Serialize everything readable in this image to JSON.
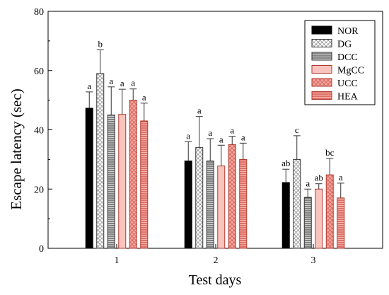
{
  "chart_data": {
    "type": "bar",
    "xlabel": "Test days",
    "ylabel": "Escape latency (sec)",
    "ylim": [
      0,
      80
    ],
    "yticks": [
      0,
      20,
      40,
      60,
      80
    ],
    "categories": [
      "1",
      "2",
      "3"
    ],
    "legend_position": "top-right",
    "series": [
      {
        "name": "NOR",
        "values": [
          47.3,
          29.5,
          22.2
        ],
        "errors": [
          5.5,
          6.5,
          4.5
        ],
        "labels": [
          "a",
          "a",
          "ab"
        ],
        "color": "#000000",
        "pattern": "solid"
      },
      {
        "name": "DG",
        "values": [
          59.0,
          34.0,
          30.0
        ],
        "errors": [
          8.0,
          10.5,
          8.0
        ],
        "labels": [
          "b",
          "a",
          "c"
        ],
        "color": "#c8c8c8",
        "pattern": "crosshatch"
      },
      {
        "name": "DCC",
        "values": [
          45.0,
          29.5,
          17.2
        ],
        "errors": [
          9.5,
          7.5,
          2.8
        ],
        "labels": [
          "a",
          "a",
          "a"
        ],
        "color": "#909090",
        "pattern": "horizontal-lines"
      },
      {
        "name": "MgCC",
        "values": [
          45.2,
          27.8,
          20.0
        ],
        "errors": [
          8.5,
          7.0,
          1.8
        ],
        "labels": [
          "a",
          "a",
          "ab"
        ],
        "color": "#f8c4bd",
        "pattern": "solid"
      },
      {
        "name": "UCC",
        "values": [
          50.0,
          35.0,
          24.8
        ],
        "errors": [
          3.8,
          2.8,
          5.5
        ],
        "labels": [
          "a",
          "a",
          "bc"
        ],
        "color": "#e57a72",
        "pattern": "crosshatch"
      },
      {
        "name": "HEA",
        "values": [
          43.0,
          30.0,
          17.0
        ],
        "errors": [
          6.0,
          5.5,
          5.0
        ],
        "labels": [
          "a",
          "a",
          "a"
        ],
        "color": "#e0564c",
        "pattern": "horizontal-lines"
      }
    ]
  }
}
